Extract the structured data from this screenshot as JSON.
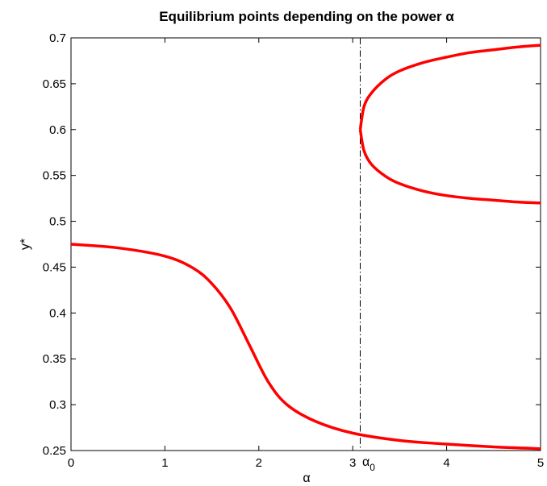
{
  "chart_data": {
    "type": "line",
    "title": "Equilibrium points depending on the power α",
    "xlabel": "α",
    "ylabel": "y*",
    "xlim": [
      0,
      5
    ],
    "ylim": [
      0.25,
      0.7
    ],
    "grid": false,
    "xticks": [
      "0",
      "1",
      "2",
      "3",
      "4",
      "5"
    ],
    "yticks": [
      "0.25",
      "0.3",
      "0.35",
      "0.4",
      "0.45",
      "0.5",
      "0.55",
      "0.6",
      "0.65",
      "0.7"
    ],
    "annotations": [
      {
        "text": "α",
        "subscript": "0",
        "x": 3.08,
        "description": "vertical dash-dot line at alpha_0"
      }
    ],
    "line_color": "#ff0000",
    "reference_line_color": "#000000",
    "series": [
      {
        "x": [
          0,
          0.5,
          1.0,
          1.3,
          1.5,
          1.7,
          1.9,
          2.1,
          2.3,
          2.6,
          3.0,
          3.5,
          4.0,
          4.5,
          5.0
        ],
        "y": [
          0.475,
          0.471,
          0.462,
          0.449,
          0.432,
          0.405,
          0.365,
          0.325,
          0.3,
          0.282,
          0.269,
          0.261,
          0.257,
          0.254,
          0.252
        ]
      },
      {
        "x": [
          3.08,
          3.12,
          3.2,
          3.35,
          3.5,
          3.75,
          4.0,
          4.25,
          4.5,
          4.75,
          5.0
        ],
        "y": [
          0.6,
          0.625,
          0.64,
          0.655,
          0.664,
          0.673,
          0.679,
          0.684,
          0.687,
          0.69,
          0.692
        ]
      },
      {
        "x": [
          3.08,
          3.12,
          3.2,
          3.35,
          3.5,
          3.75,
          4.0,
          4.25,
          4.5,
          4.75,
          5.0
        ],
        "y": [
          0.6,
          0.577,
          0.562,
          0.549,
          0.541,
          0.533,
          0.528,
          0.525,
          0.523,
          0.521,
          0.52
        ]
      }
    ]
  }
}
